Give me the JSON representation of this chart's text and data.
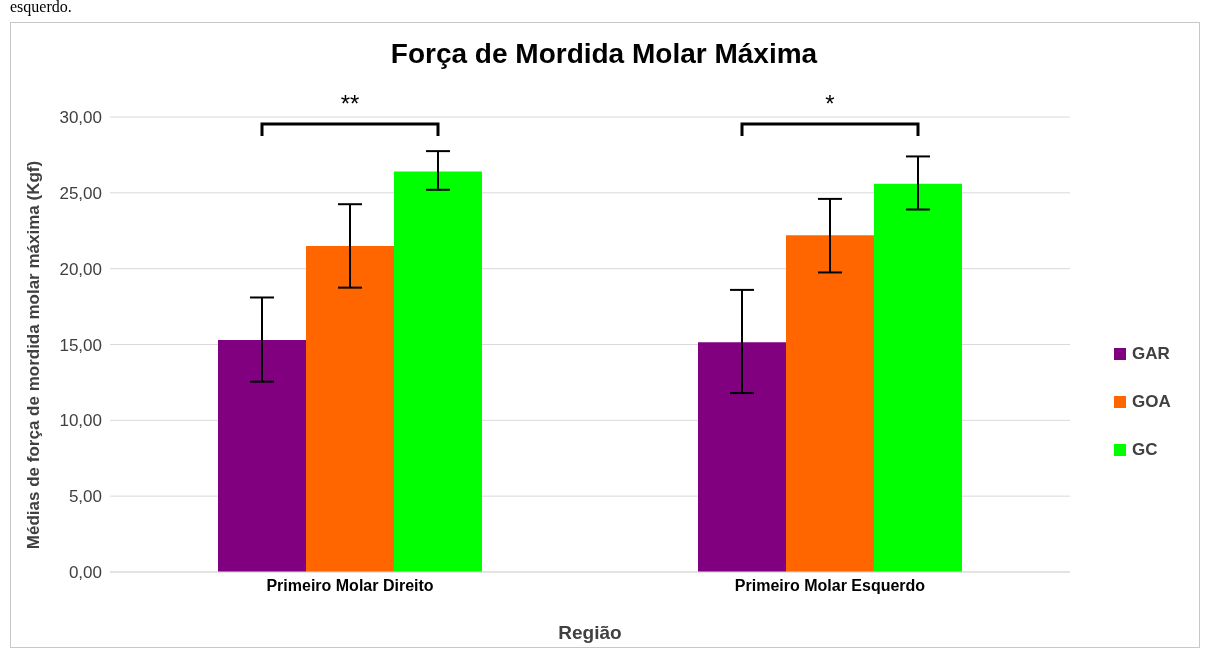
{
  "chart_data": {
    "type": "bar",
    "title": "Força de Mordida Molar Máxima",
    "xlabel": "Região",
    "ylabel": "Médias de força de mordida molar máxima (Kgf)",
    "categories": [
      "Primeiro Molar Direito",
      "Primeiro Molar Esquerdo"
    ],
    "series": [
      {
        "name": "GAR",
        "color": "#800080",
        "values": [
          15.3,
          15.15
        ],
        "errors": [
          [
            12.55,
            18.1
          ],
          [
            11.8,
            18.6
          ]
        ]
      },
      {
        "name": "GOA",
        "color": "#ff6600",
        "values": [
          21.5,
          22.2
        ],
        "errors": [
          [
            18.75,
            24.25
          ],
          [
            19.75,
            24.6
          ]
        ]
      },
      {
        "name": "GC",
        "color": "#00ff00",
        "values": [
          26.4,
          25.6
        ],
        "errors": [
          [
            25.2,
            27.75
          ],
          [
            23.9,
            27.4
          ]
        ]
      }
    ],
    "ylim": [
      0,
      30
    ],
    "yticks": [
      {
        "value": 0,
        "label": "0,00"
      },
      {
        "value": 5,
        "label": "5,00"
      },
      {
        "value": 10,
        "label": "10,00"
      },
      {
        "value": 15,
        "label": "15,00"
      },
      {
        "value": 20,
        "label": "20,00"
      },
      {
        "value": 25,
        "label": "25,00"
      },
      {
        "value": 30,
        "label": "30,00"
      }
    ],
    "grid": "y",
    "legend": "right",
    "annotations": [
      "esquerdo.",
      "**",
      "*"
    ]
  }
}
